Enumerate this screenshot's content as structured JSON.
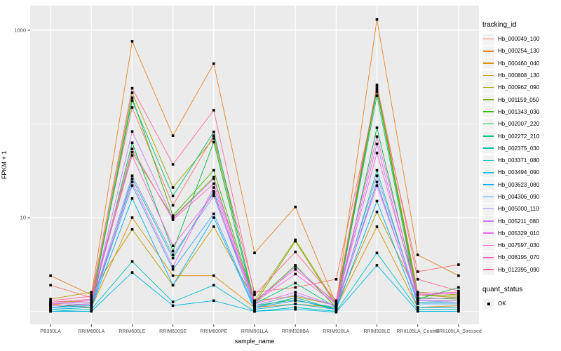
{
  "figure": {
    "panel_bg": "#EBEBEB",
    "grid_color": "#FFFFFF",
    "tick_color": "#333333",
    "axis_text_color": "#4D4D4D",
    "point_color": "#000000",
    "legend_key_bg": "#F2F2F2"
  },
  "x_axis": {
    "title": "sample_name"
  },
  "y_axis": {
    "title": "FPKM + 1",
    "tick_values": [
      1000,
      10
    ],
    "tick_labels": [
      "1000",
      "10"
    ]
  },
  "legend": {
    "title": "tracking_id",
    "point_group_title": "quant_status",
    "point_group_label": "OK"
  },
  "chart_data": {
    "type": "line",
    "title": "",
    "xlabel": "sample_name",
    "ylabel": "FPKM + 1",
    "y_scale": "log10",
    "ylim": [
      0.73,
      1800
    ],
    "y_gridlines_major": [
      10,
      1000
    ],
    "y_gridlines_minor": [
      1,
      100
    ],
    "grid": true,
    "legend_position": "right",
    "point_marker": "square",
    "categories": [
      "PB350LA",
      "RRIM600LA",
      "RRIM600LE",
      "RRIM600SE",
      "RRIM600PE",
      "RRIM901LA",
      "RRIM928BA",
      "RRIM928LA",
      "RRIM928LE",
      "RRII105LA_Control",
      "RRII105LA_Stressed"
    ],
    "series": [
      {
        "name": "Hb_000049_100",
        "color": "#F8766D",
        "values": [
          1.9,
          1.4,
          150,
          13.5,
          75,
          1.6,
          1.8,
          2.2,
          220,
          2.65,
          3.15
        ]
      },
      {
        "name": "Hb_000254_130",
        "color": "#E88526",
        "values": [
          2.4,
          1.5,
          760,
          75,
          440,
          4.2,
          13,
          1.2,
          1300,
          4.0,
          2.4
        ]
      },
      {
        "name": "Hb_000460_040",
        "color": "#D89000",
        "values": [
          1.2,
          1.1,
          10,
          2.4,
          2.4,
          1.1,
          1.2,
          1.1,
          8,
          1.1,
          1.15
        ]
      },
      {
        "name": "Hb_000808_130",
        "color": "#C09B00",
        "values": [
          1.35,
          1.6,
          7.5,
          1.9,
          8,
          1.3,
          1.45,
          1.15,
          11.5,
          1.5,
          1.4
        ]
      },
      {
        "name": "Hb_000962_090",
        "color": "#A3A500",
        "values": [
          1.25,
          1.3,
          215,
          21,
          70,
          1.3,
          5.8,
          1.2,
          250,
          1.6,
          1.5
        ]
      },
      {
        "name": "Hb_001159_050",
        "color": "#7CAE00",
        "values": [
          1.2,
          1.25,
          50,
          10,
          27,
          1.2,
          5.6,
          1.15,
          240,
          1.5,
          1.45
        ]
      },
      {
        "name": "Hb_001343_030",
        "color": "#39B600",
        "values": [
          1.15,
          1.2,
          190,
          10.5,
          32,
          1.25,
          3.1,
          1.1,
          230,
          1.4,
          1.35
        ]
      },
      {
        "name": "Hb_002007_220",
        "color": "#00BB4E",
        "values": [
          1.1,
          1.15,
          63,
          4.4,
          64,
          1.15,
          1.33,
          1.05,
          91,
          1.35,
          1.8
        ]
      },
      {
        "name": "Hb_002272_210",
        "color": "#00C087",
        "values": [
          1.1,
          1.2,
          178,
          17,
          82,
          1.2,
          2.0,
          1.1,
          200,
          1.3,
          1.3
        ]
      },
      {
        "name": "Hb_002375_030",
        "color": "#00C0AF",
        "values": [
          1.05,
          1.1,
          26,
          3.7,
          19,
          1.1,
          1.4,
          1.05,
          32,
          1.25,
          1.25
        ]
      },
      {
        "name": "Hb_003371_080",
        "color": "#00BFC4",
        "values": [
          1.0,
          1.05,
          3.4,
          1.26,
          1.9,
          1.0,
          1.1,
          1.0,
          4.2,
          1.05,
          1.05
        ]
      },
      {
        "name": "Hb_003494_090",
        "color": "#00B8E5",
        "values": [
          1.0,
          1.0,
          2.6,
          1.15,
          1.3,
          1.0,
          1.05,
          0.98,
          3.1,
          1.0,
          1.0
        ]
      },
      {
        "name": "Hb_003623_080",
        "color": "#00B0F6",
        "values": [
          1.05,
          1.1,
          16,
          1.9,
          10,
          1.05,
          1.2,
          1.05,
          15,
          1.1,
          1.1
        ]
      },
      {
        "name": "Hb_004306_090",
        "color": "#35A2FF",
        "values": [
          1.1,
          1.15,
          22,
          2.8,
          11,
          1.1,
          1.3,
          1.1,
          24,
          1.2,
          1.2
        ]
      },
      {
        "name": "Hb_005000_110",
        "color": "#9590FF",
        "values": [
          1.15,
          1.2,
          28,
          4.0,
          17,
          1.15,
          1.5,
          1.15,
          28,
          1.3,
          1.25
        ]
      },
      {
        "name": "Hb_005211_080",
        "color": "#C77CFF",
        "values": [
          1.2,
          1.25,
          83,
          9.8,
          26,
          1.2,
          3.0,
          1.2,
          61,
          1.35,
          1.4
        ]
      },
      {
        "name": "Hb_005329_010",
        "color": "#E76BF3",
        "values": [
          1.15,
          1.2,
          24,
          3.0,
          21,
          1.2,
          1.6,
          1.15,
          22,
          1.3,
          1.3
        ]
      },
      {
        "name": "Hb_007597_030",
        "color": "#F763E0",
        "values": [
          1.2,
          1.3,
          46,
          5.0,
          18,
          1.25,
          2.5,
          1.2,
          49,
          1.5,
          1.55
        ]
      },
      {
        "name": "Hb_008195_070",
        "color": "#FF61CC",
        "values": [
          1.25,
          1.35,
          54,
          9.5,
          23,
          1.3,
          2.8,
          1.25,
          73,
          1.55,
          1.6
        ]
      },
      {
        "name": "Hb_012395_090",
        "color": "#FF6A98",
        "values": [
          1.3,
          1.45,
          240,
          37,
          140,
          1.5,
          4.3,
          1.3,
          260,
          2.2,
          1.65
        ]
      }
    ]
  }
}
